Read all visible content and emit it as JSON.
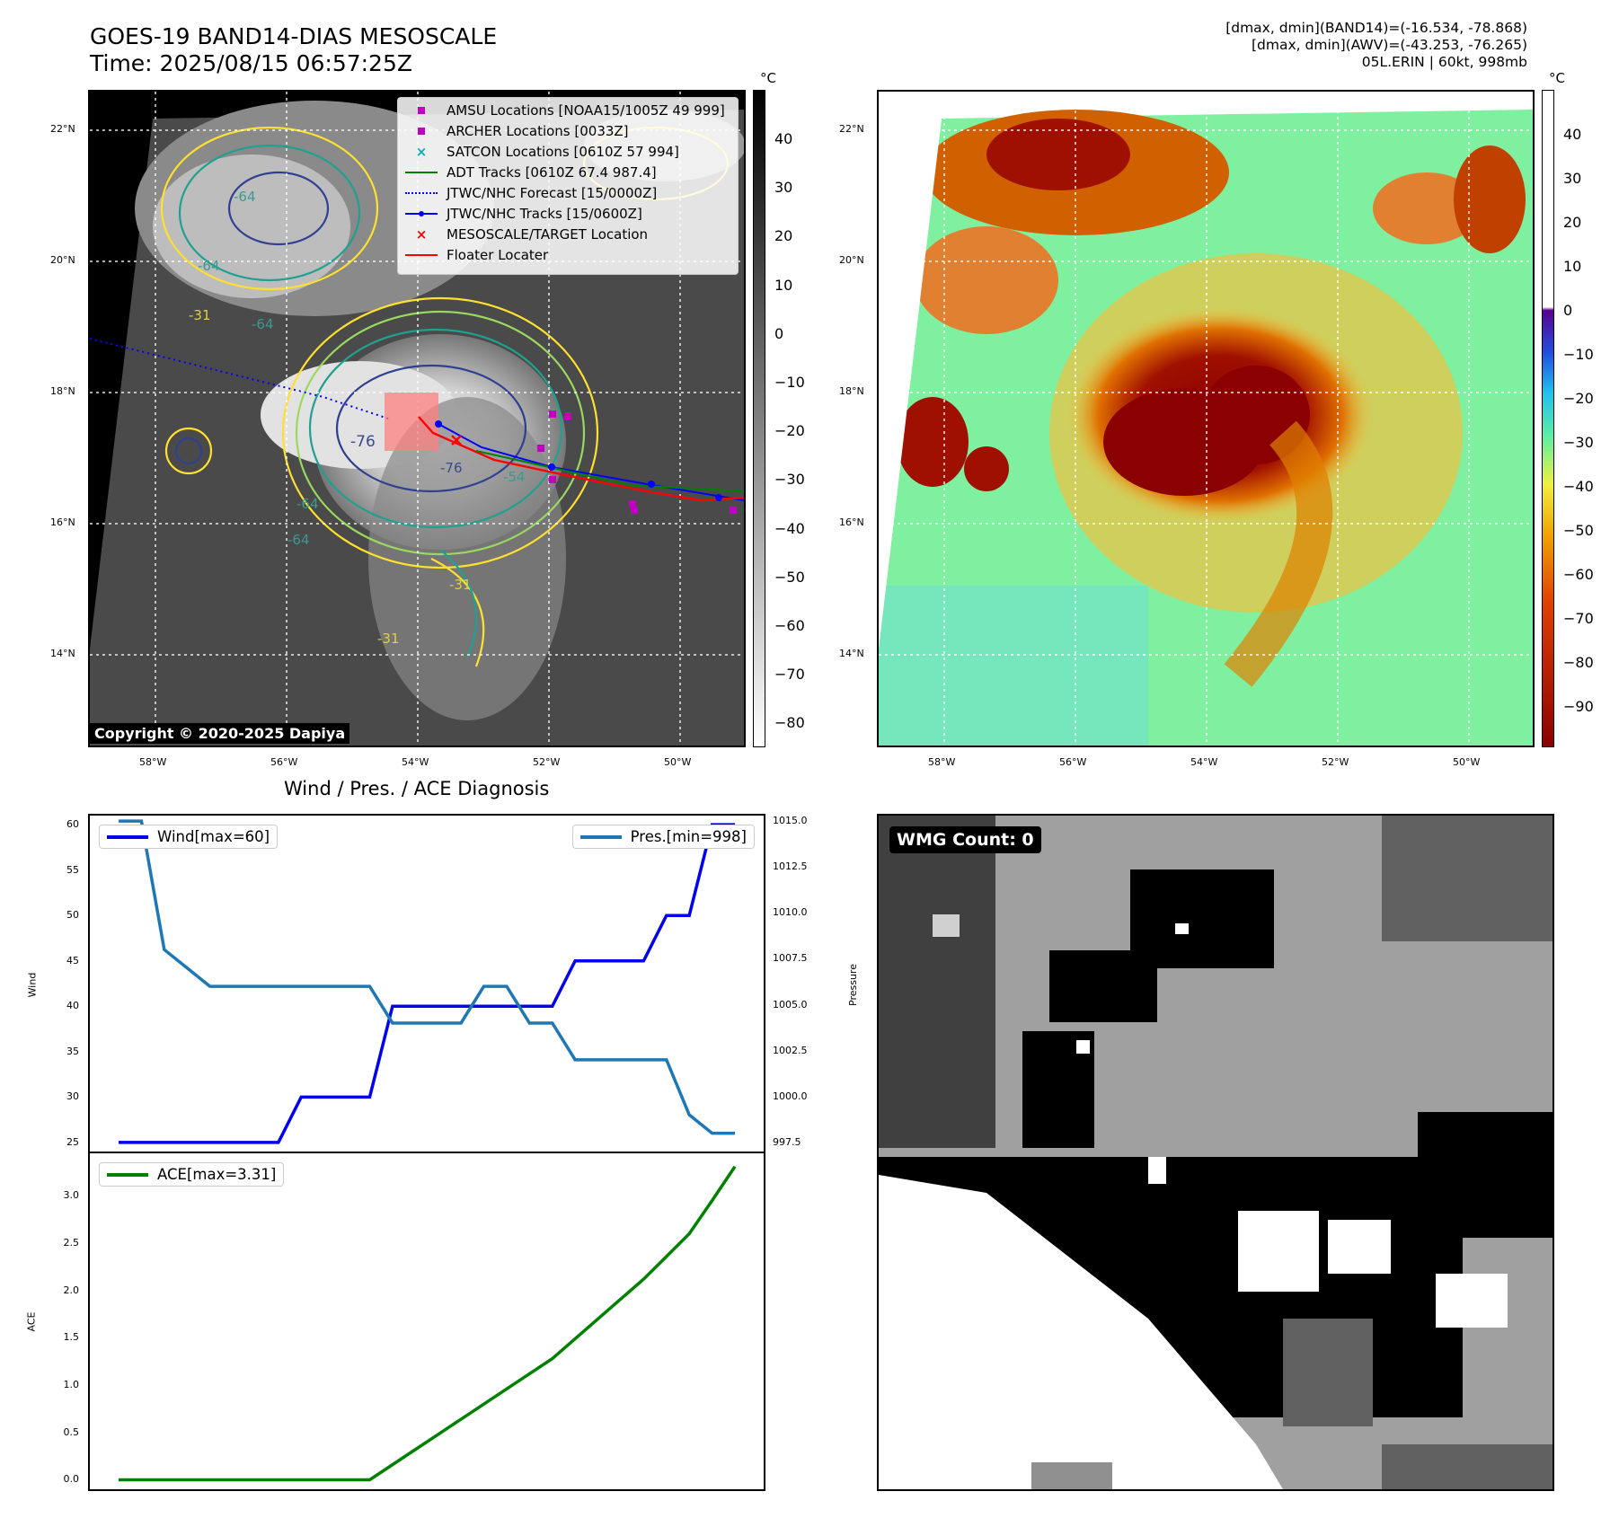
{
  "header": {
    "title_line1": "GOES-19 BAND14-DIAS MESOSCALE",
    "title_line2": "Time: 2025/08/15 06:57:25Z",
    "info_line1": "[dmax, dmin](BAND14)=(-16.534, -78.868)",
    "info_line2": "[dmax, dmin](AWV)=(-43.253, -76.265)",
    "info_line3": "05L.ERIN | 60kt, 998mb"
  },
  "map_left": {
    "lat_labels": [
      "22°N",
      "20°N",
      "18°N",
      "16°N",
      "14°N"
    ],
    "lon_labels": [
      "58°W",
      "56°W",
      "54°W",
      "52°W",
      "50°W"
    ],
    "contour_labels": [
      "-64",
      "-64",
      "-64",
      "-64",
      "-64",
      "-76",
      "-76",
      "-31",
      "-31",
      "-31",
      "-54"
    ],
    "legend": [
      {
        "label": "AMSU Locations [NOAA15/1005Z 49 999]",
        "symbol": "square",
        "color": "#c000c0"
      },
      {
        "label": "ARCHER Locations [0033Z]",
        "symbol": "square",
        "color": "#c000c0"
      },
      {
        "label": "SATCON Locations [0610Z 57 994]",
        "symbol": "x",
        "color": "#00b0b0"
      },
      {
        "label": "ADT Tracks [0610Z 67.4 987.4]",
        "symbol": "line",
        "color": "#008000"
      },
      {
        "label": "JTWC/NHC Forecast [15/0000Z]",
        "symbol": "dotted",
        "color": "#0000ff"
      },
      {
        "label": "JTWC/NHC Tracks [15/0600Z]",
        "symbol": "linedot",
        "color": "#0000ff"
      },
      {
        "label": "MESOSCALE/TARGET Location",
        "symbol": "x",
        "color": "#ff0000"
      },
      {
        "label": "Floater Locater",
        "symbol": "line",
        "color": "#ff0000"
      }
    ],
    "copyright": "Copyright © 2020-2025 Dapiya",
    "colorbar_unit": "°C",
    "colorbar_ticks": [
      "40",
      "30",
      "20",
      "10",
      "0",
      "−10",
      "−20",
      "−30",
      "−40",
      "−50",
      "−60",
      "−70",
      "−80"
    ]
  },
  "map_right": {
    "lat_labels": [
      "22°N",
      "20°N",
      "18°N",
      "16°N",
      "14°N"
    ],
    "lon_labels": [
      "58°W",
      "56°W",
      "54°W",
      "52°W",
      "50°W"
    ],
    "colorbar_unit": "°C",
    "colorbar_ticks": [
      "40",
      "30",
      "20",
      "10",
      "0",
      "−10",
      "−20",
      "−30",
      "−40",
      "−50",
      "−60",
      "−70",
      "−80",
      "−90"
    ]
  },
  "wmg": {
    "label": "WMG Count: 0"
  },
  "chart_data": [
    {
      "type": "line",
      "title": "Wind / Pres. / ACE Diagnosis",
      "ylabel": "Wind",
      "ylabel_right": "Pressure",
      "ylim": [
        24,
        61
      ],
      "ylim_right": [
        997,
        1015.3
      ],
      "yticks": [
        25,
        30,
        35,
        40,
        45,
        50,
        55,
        60
      ],
      "yticks_right": [
        "997.5",
        "1000.0",
        "1002.5",
        "1005.0",
        "1007.5",
        "1010.0",
        "1012.5",
        "1015.0"
      ],
      "x": [
        0,
        1,
        2,
        3,
        4,
        5,
        6,
        7,
        8,
        9,
        10,
        11,
        12,
        13,
        14,
        15,
        16,
        17,
        18,
        19,
        20,
        21,
        22,
        23,
        24,
        25,
        26,
        27
      ],
      "series": [
        {
          "name": "Wind[max=60]",
          "axis": "left",
          "color": "#0000ee",
          "values": [
            25,
            25,
            25,
            25,
            25,
            25,
            25,
            25,
            30,
            30,
            30,
            30,
            40,
            40,
            40,
            40,
            40,
            40,
            40,
            40,
            45,
            45,
            45,
            45,
            50,
            50,
            60,
            60
          ]
        },
        {
          "name": "Pres.[min=998]",
          "axis": "right",
          "color": "#1f77b4",
          "values": [
            1015,
            1015,
            1008,
            1007,
            1006,
            1006,
            1006,
            1006,
            1006,
            1006,
            1006,
            1006,
            1004,
            1004,
            1004,
            1004,
            1006,
            1006,
            1004,
            1004,
            1002,
            1002,
            1002,
            1002,
            1002,
            999,
            998,
            998
          ]
        }
      ]
    },
    {
      "type": "line",
      "ylabel": "ACE",
      "ylim": [
        -0.1,
        3.45
      ],
      "yticks": [
        "0.0",
        "0.5",
        "1.0",
        "1.5",
        "2.0",
        "2.5",
        "3.0"
      ],
      "x": [
        0,
        1,
        2,
        3,
        4,
        5,
        6,
        7,
        8,
        9,
        10,
        11,
        12,
        13,
        14,
        15,
        16,
        17,
        18,
        19,
        20,
        21,
        22,
        23,
        24,
        25,
        26,
        27
      ],
      "series": [
        {
          "name": "ACE[max=3.31]",
          "color": "#008000",
          "values": [
            0,
            0,
            0,
            0,
            0,
            0,
            0,
            0,
            0,
            0,
            0,
            0,
            0.16,
            0.32,
            0.48,
            0.64,
            0.8,
            0.96,
            1.12,
            1.28,
            1.49,
            1.7,
            1.91,
            2.12,
            2.36,
            2.6,
            2.95,
            3.31
          ]
        }
      ]
    }
  ]
}
